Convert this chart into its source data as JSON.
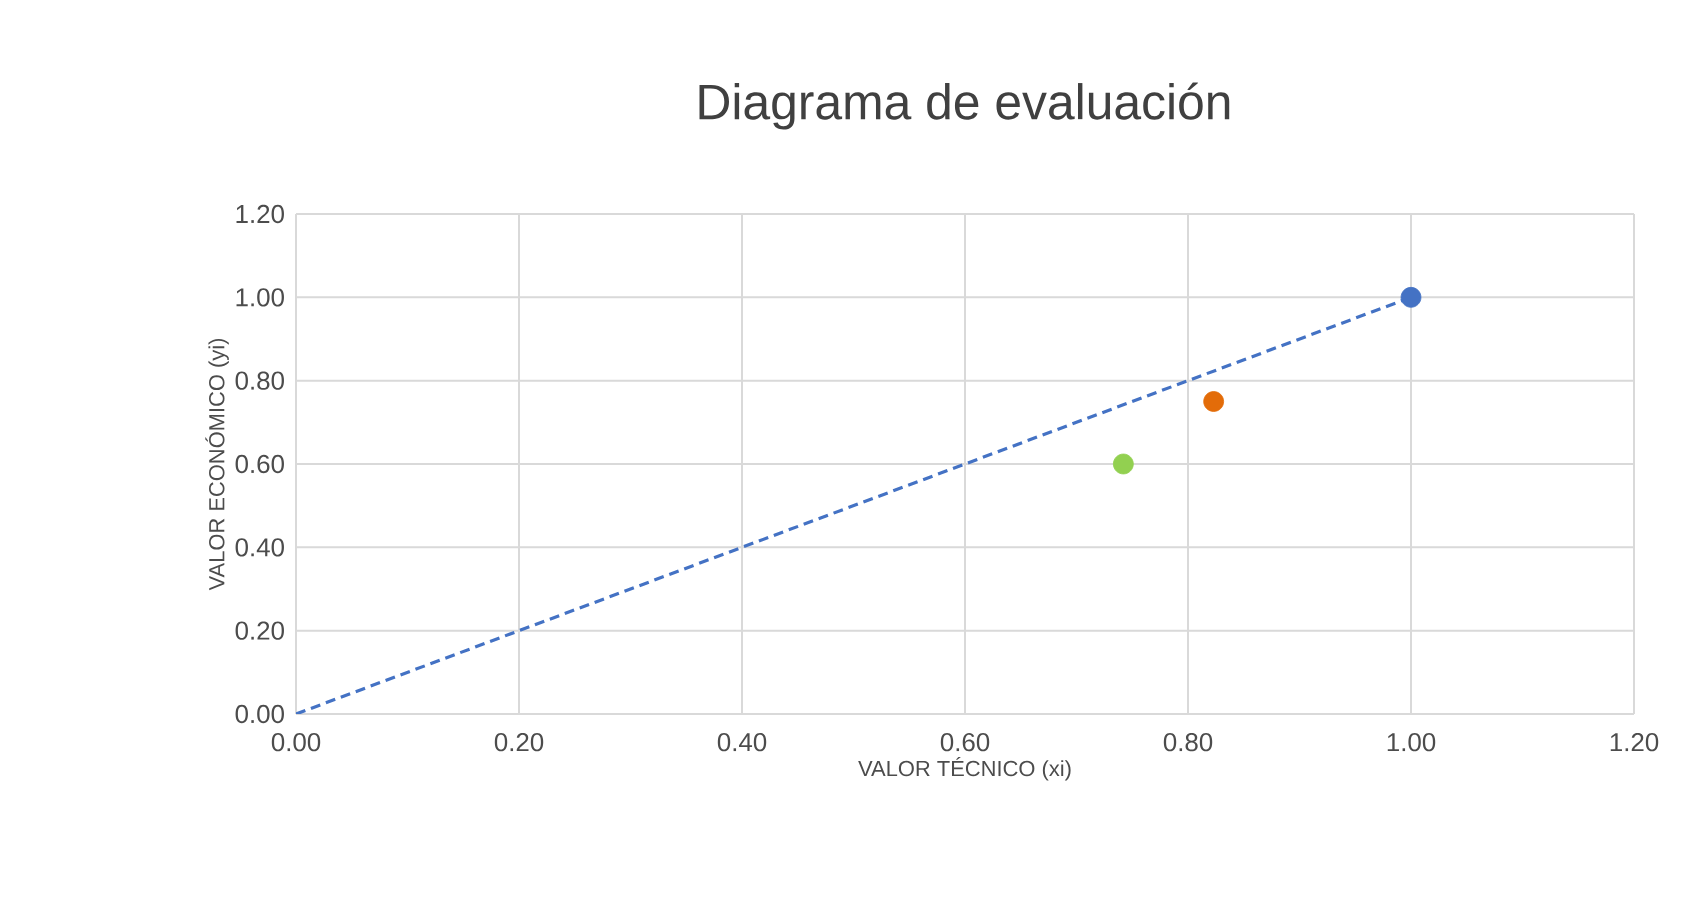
{
  "chart_data": {
    "type": "scatter",
    "title": "Diagrama de evaluación",
    "xlabel": "VALOR TÉCNICO (xi)",
    "ylabel": "VALOR ECONÓMICO  (yi)",
    "series": [
      {
        "type": "line",
        "color": "#4472c4",
        "x": [
          0,
          1.0
        ],
        "values": [
          0,
          1.0
        ],
        "line_style": "dashed",
        "marker": "none"
      },
      {
        "color": "#4472c4",
        "x": [
          1.0
        ],
        "values": [
          1.0
        ]
      },
      {
        "color": "#e36c09",
        "x": [
          0.823
        ],
        "values": [
          0.75
        ]
      },
      {
        "color": "#92d050",
        "x": [
          0.742
        ],
        "values": [
          0.6
        ]
      }
    ],
    "marker": "circle",
    "grid": true,
    "legend": false,
    "xlim": [
      0,
      1.2
    ],
    "ylim": [
      0,
      1.2
    ],
    "xticks": [
      {
        "value": 0,
        "label": "0.00"
      },
      {
        "value": 0.2,
        "label": "0.20"
      },
      {
        "value": 0.4,
        "label": "0.40"
      },
      {
        "value": 0.6,
        "label": "0.60"
      },
      {
        "value": 0.8,
        "label": "0.80"
      },
      {
        "value": 1.0,
        "label": "1.00"
      },
      {
        "value": 1.2,
        "label": "1.20"
      }
    ],
    "yticks": [
      {
        "value": 0,
        "label": "0.00"
      },
      {
        "value": 0.2,
        "label": "0.20"
      },
      {
        "value": 0.4,
        "label": "0.40"
      },
      {
        "value": 0.6,
        "label": "0.60"
      },
      {
        "value": 0.8,
        "label": "0.80"
      },
      {
        "value": 1.0,
        "label": "1.00"
      },
      {
        "value": 1.2,
        "label": "1.20"
      }
    ]
  }
}
